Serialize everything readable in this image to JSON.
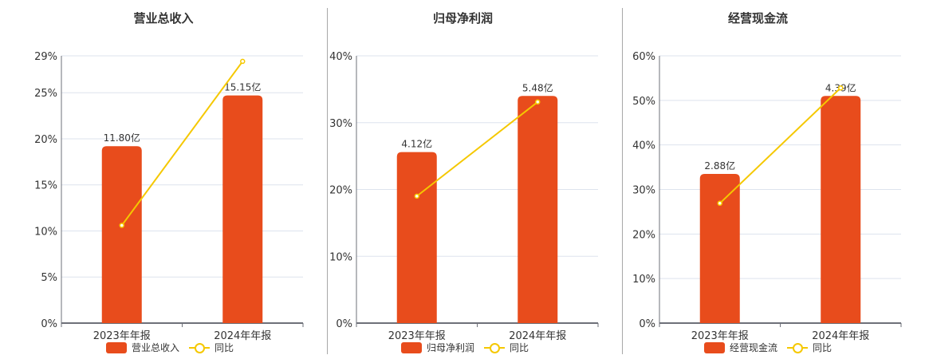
{
  "colors": {
    "bar": "#E84C1C",
    "line": "#F5C800",
    "grid": "#DDE3EE",
    "axis": "#6E7079"
  },
  "categories": [
    "2023年年报",
    "2024年年报"
  ],
  "legend_line_label": "同比",
  "charts": [
    {
      "title": "营业总收入",
      "legend_bar_label": "营业总收入",
      "y_ticks": [
        "0%",
        "5%",
        "10%",
        "15%",
        "20%",
        "25%",
        "29%"
      ],
      "bar_labels": [
        "11.80亿",
        "15.15亿"
      ]
    },
    {
      "title": "归母净利润",
      "legend_bar_label": "归母净利润",
      "y_ticks": [
        "0%",
        "10%",
        "20%",
        "30%",
        "40%"
      ],
      "bar_labels": [
        "4.12亿",
        "5.48亿"
      ]
    },
    {
      "title": "经营现金流",
      "legend_bar_label": "经营现金流",
      "y_ticks": [
        "0%",
        "10%",
        "20%",
        "30%",
        "40%",
        "50%",
        "60%"
      ],
      "bar_labels": [
        "2.88亿",
        "4.39亿"
      ]
    }
  ],
  "chart_data": [
    {
      "type": "bar",
      "title": "营业总收入",
      "categories": [
        "2023年年报",
        "2024年年报"
      ],
      "series": [
        {
          "name": "营业总收入",
          "type": "bar",
          "values_display": [
            "11.80亿",
            "15.15亿"
          ],
          "values": [
            11.8,
            15.15
          ],
          "unit": "亿",
          "bar_height_pct_axis": [
            19.2,
            24.7
          ]
        },
        {
          "name": "同比",
          "type": "line",
          "values": [
            10.6,
            28.4
          ],
          "unit": "%"
        }
      ],
      "xlabel": "",
      "ylabel": "",
      "y_tick_values": [
        0,
        5,
        10,
        15,
        20,
        25,
        29
      ],
      "ylim": [
        0,
        29
      ],
      "grid": true,
      "legend_position": "bottom"
    },
    {
      "type": "bar",
      "title": "归母净利润",
      "categories": [
        "2023年年报",
        "2024年年报"
      ],
      "series": [
        {
          "name": "归母净利润",
          "type": "bar",
          "values_display": [
            "4.12亿",
            "5.48亿"
          ],
          "values": [
            4.12,
            5.48
          ],
          "unit": "亿",
          "bar_height_pct_axis": [
            25.6,
            34.0
          ]
        },
        {
          "name": "同比",
          "type": "line",
          "values": [
            19.0,
            33.1
          ],
          "unit": "%"
        }
      ],
      "xlabel": "",
      "ylabel": "",
      "y_tick_values": [
        0,
        10,
        20,
        30,
        40
      ],
      "ylim": [
        0,
        40
      ],
      "grid": true,
      "legend_position": "bottom"
    },
    {
      "type": "bar",
      "title": "经营现金流",
      "categories": [
        "2023年年报",
        "2024年年报"
      ],
      "series": [
        {
          "name": "经营现金流",
          "type": "bar",
          "values_display": [
            "2.88亿",
            "4.39亿"
          ],
          "values": [
            2.88,
            4.39
          ],
          "unit": "亿",
          "bar_height_pct_axis": [
            33.5,
            51.0
          ]
        },
        {
          "name": "同比",
          "type": "line",
          "values": [
            26.9,
            52.8
          ],
          "unit": "%"
        }
      ],
      "xlabel": "",
      "ylabel": "",
      "y_tick_values": [
        0,
        10,
        20,
        30,
        40,
        50,
        60
      ],
      "ylim": [
        0,
        60
      ],
      "grid": true,
      "legend_position": "bottom"
    }
  ]
}
